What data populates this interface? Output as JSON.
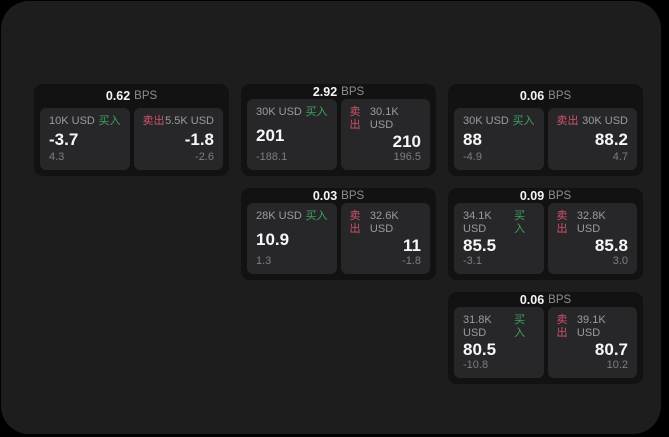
{
  "labels": {
    "bps_unit": "BPS",
    "buy": "买入",
    "sell": "卖出"
  },
  "colors": {
    "buy": "#43a05e",
    "sell": "#cf5368",
    "panel_bg": "#1d1d1e",
    "card_bg": "#121213",
    "tile_bg": "#27272a"
  },
  "cards": [
    {
      "row": 1,
      "col": 1,
      "bps": "0.62",
      "buy": {
        "amount": "10K USD",
        "price": "-3.7",
        "delta": "4.3"
      },
      "sell": {
        "amount": "5.5K USD",
        "price": "-1.8",
        "delta": "-2.6"
      }
    },
    {
      "row": 1,
      "col": 2,
      "bps": "2.92",
      "buy": {
        "amount": "30K USD",
        "price": "201",
        "delta": "-188.1"
      },
      "sell": {
        "amount": "30.1K USD",
        "price": "210",
        "delta": "196.5"
      }
    },
    {
      "row": 1,
      "col": 3,
      "bps": "0.06",
      "buy": {
        "amount": "30K USD",
        "price": "88",
        "delta": "-4.9"
      },
      "sell": {
        "amount": "30K USD",
        "price": "88.2",
        "delta": "4.7"
      }
    },
    {
      "row": 2,
      "col": 2,
      "bps": "0.03",
      "buy": {
        "amount": "28K USD",
        "price": "10.9",
        "delta": "1.3"
      },
      "sell": {
        "amount": "32.6K USD",
        "price": "11",
        "delta": "-1.8"
      }
    },
    {
      "row": 2,
      "col": 3,
      "bps": "0.09",
      "buy": {
        "amount": "34.1K USD",
        "price": "85.5",
        "delta": "-3.1"
      },
      "sell": {
        "amount": "32.8K USD",
        "price": "85.8",
        "delta": "3.0"
      }
    },
    {
      "row": 3,
      "col": 3,
      "bps": "0.06",
      "buy": {
        "amount": "31.8K USD",
        "price": "80.5",
        "delta": "-10.8"
      },
      "sell": {
        "amount": "39.1K USD",
        "price": "80.7",
        "delta": "10.2"
      }
    }
  ]
}
